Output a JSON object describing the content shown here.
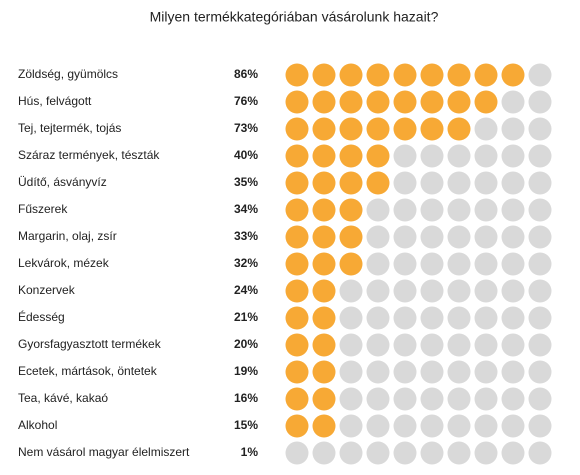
{
  "chart_data": {
    "type": "dot-matrix",
    "title": "Milyen termékkategóriában vásárolunk hazait?",
    "categories": [
      "Zöldség, gyümölcs",
      "Hús, felvágott",
      "Tej, tejtermék, tojás",
      "Száraz termények, tészták",
      "Üdítő, ásványvíz",
      "Fűszerek",
      "Margarin, olaj, zsír",
      "Lekvárok, mézek",
      "Konzervek",
      "Édesség",
      "Gyorsfagyasztott termékek",
      "Ecetek, mártások, öntetek",
      "Tea, kávé, kakaó",
      "Alkohol",
      "Nem vásárol magyar élelmiszert"
    ],
    "values": [
      86,
      76,
      73,
      40,
      35,
      34,
      33,
      32,
      24,
      21,
      20,
      19,
      16,
      15,
      1
    ],
    "value_labels": [
      "86%",
      "76%",
      "73%",
      "40%",
      "35%",
      "34%",
      "33%",
      "32%",
      "24%",
      "21%",
      "20%",
      "19%",
      "16%",
      "15%",
      "1%"
    ],
    "color": "#f7a935",
    "empty_color": "#d9d9d9",
    "xlim": [
      0,
      100
    ]
  }
}
